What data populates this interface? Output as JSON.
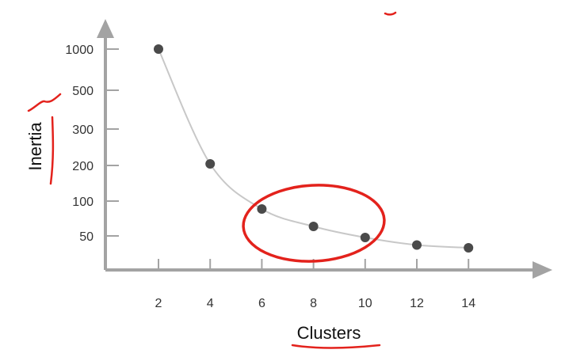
{
  "chart_data": {
    "type": "line",
    "title": "",
    "xlabel": "Clusters",
    "ylabel": "Inertia",
    "x_ticks": [
      "2",
      "4",
      "6",
      "8",
      "10",
      "12",
      "14"
    ],
    "y_ticks": [
      "50",
      "100",
      "200",
      "300",
      "500",
      "1000"
    ],
    "series": [
      {
        "x": [
          2,
          4,
          6,
          8,
          10,
          12,
          14
        ],
        "y": [
          1000,
          200,
          80,
          64,
          48,
          40,
          37
        ]
      }
    ],
    "grid": false,
    "highlight": {
      "shape": "ellipse",
      "x_center": 8,
      "color": "#e3221c"
    },
    "colors": {
      "axis": "#a3a3a3",
      "line": "#c8c8c8",
      "point": "#4a4a4a",
      "annotation": "#e3221c"
    }
  }
}
